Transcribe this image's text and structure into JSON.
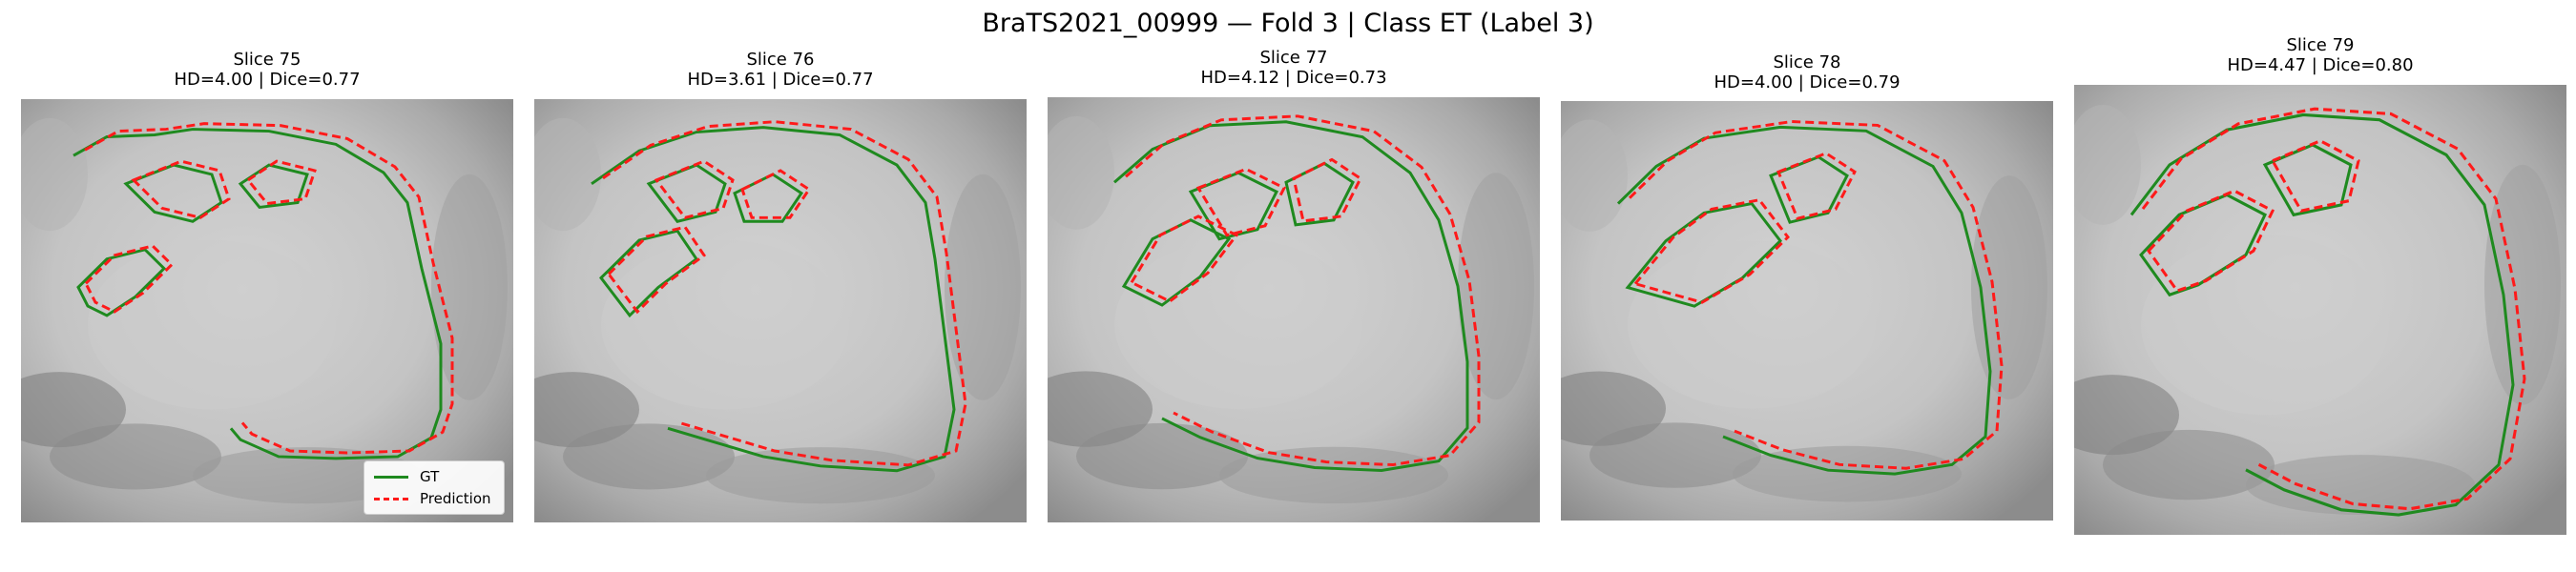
{
  "figure": {
    "title": "BraTS2021_00999 — Fold 3 | Class ET (Label 3)"
  },
  "colors": {
    "gt": "#1f8a1f",
    "prediction": "#ff1a1a",
    "background": "#ffffff"
  },
  "legend": {
    "gt_label": "GT",
    "prediction_label": "Prediction"
  },
  "panels": [
    {
      "slice": "Slice 75",
      "metrics": "HD=4.00 | Dice=0.77"
    },
    {
      "slice": "Slice 76",
      "metrics": "HD=3.61 | Dice=0.77"
    },
    {
      "slice": "Slice 77",
      "metrics": "HD=4.12 | Dice=0.73"
    },
    {
      "slice": "Slice 78",
      "metrics": "HD=4.00 | Dice=0.79"
    },
    {
      "slice": "Slice 79",
      "metrics": "HD=4.47 | Dice=0.80"
    }
  ]
}
